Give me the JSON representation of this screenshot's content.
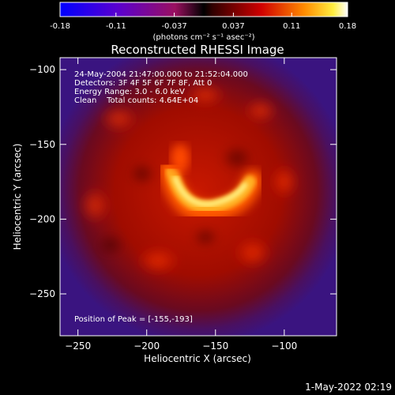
{
  "colorbar": {
    "ticks": [
      -0.18,
      -0.11,
      -0.037,
      0.037,
      0.11,
      0.18
    ],
    "tick_labels": [
      "-0.18",
      "-0.11",
      "-0.037",
      "0.037",
      "0.11",
      "0.18"
    ],
    "range": [
      -0.18,
      0.18
    ],
    "unit_label": "(photons cm⁻² s⁻¹ asec⁻²)"
  },
  "title": "Reconstructed RHESSI Image",
  "info_lines": [
    "24-May-2004 21:47:00.000 to 21:52:04.000",
    "Detectors: 3F 4F 5F 6F 7F 8F, Att 0",
    "Energy Range: 3.0 - 6.0 keV",
    "Clean    Total counts: 4.64E+04"
  ],
  "peak_label": "Position of Peak = [-155,-193]",
  "axes": {
    "xlabel": "Heliocentric X (arcsec)",
    "ylabel": "Heliocentric Y (arcsec)",
    "xlim": [
      -263,
      -62
    ],
    "ylim": [
      -278,
      -92
    ],
    "xticks": [
      -250,
      -200,
      -150,
      -100
    ],
    "yticks": [
      -100,
      -150,
      -200,
      -250
    ]
  },
  "timestamp": "1-May-2022 02:19",
  "colors": {
    "background": "#000000",
    "low": "#0000ff",
    "mid": "#ff0000",
    "high": "#ffffff"
  }
}
